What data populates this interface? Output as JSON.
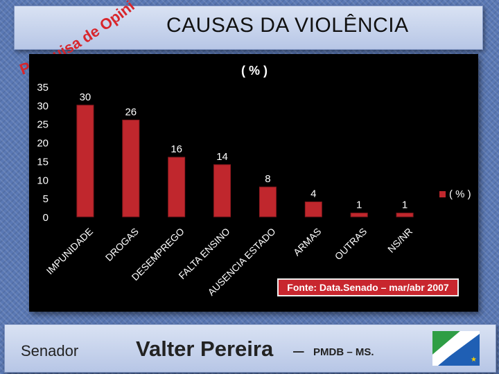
{
  "header": {
    "subtitle_curved": "Pesquisa de Opinião",
    "title": "CAUSAS DA VIOLÊNCIA"
  },
  "chart_data": {
    "type": "bar",
    "title": "( % )",
    "categories": [
      "IMPUNIDADE",
      "DROGAS",
      "DESEMPREGO",
      "FALTA ENSINO",
      "AUSENCIA ESTADO",
      "ARMAS",
      "OUTRAS",
      "NS/NR"
    ],
    "series": [
      {
        "name": "( % )",
        "values": [
          30,
          26,
          16,
          14,
          8,
          4,
          1,
          1
        ]
      }
    ],
    "data_labels": [
      "30",
      "26",
      "16",
      "14",
      "8",
      "4",
      "1",
      "1"
    ],
    "y_ticks": [
      "0",
      "5",
      "10",
      "15",
      "20",
      "25",
      "30",
      "35"
    ],
    "ylim": [
      0,
      35
    ],
    "xlabel": "",
    "ylabel": "",
    "grid": false,
    "legend_position": "right",
    "bar_color": "#c0272d"
  },
  "source": {
    "text": "Fonte: Data.Senado – mar/abr 2007"
  },
  "footer": {
    "senador_label": "Senador",
    "name": "Valter Pereira",
    "dash": "–",
    "party": "PMDB – MS."
  },
  "flag": {
    "icon": "mato-grosso-do-sul-flag-icon"
  }
}
